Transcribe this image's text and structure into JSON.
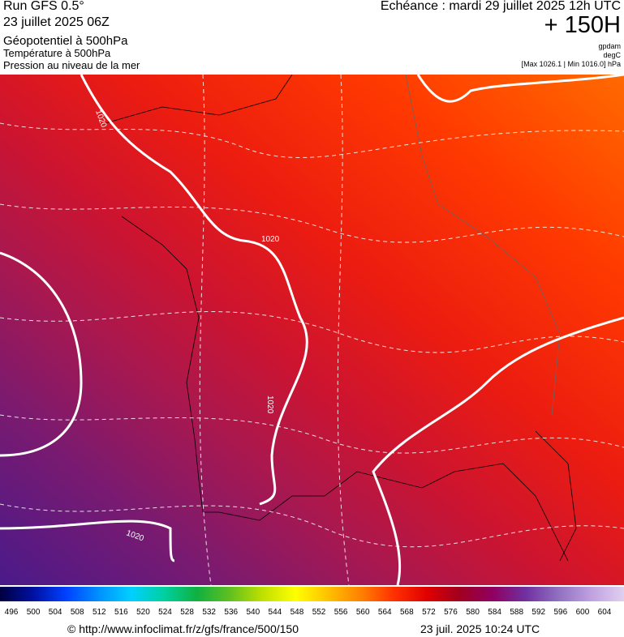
{
  "header": {
    "run": "Run GFS 0.5°",
    "date": "23 juillet 2025 06Z",
    "fields": [
      "Géopotentiel à 500hPa",
      "Température à 500hPa",
      "Pression au niveau de la mer"
    ],
    "echeance": "Echéance : mardi 29 juillet 2025 12h UTC",
    "lead": "+ 150H",
    "units": [
      "gpdam",
      "degC",
      "[Max 1026.1 | Min 1016.0] hPa"
    ]
  },
  "map": {
    "contour_labels": [
      "1020",
      "1020",
      "1020",
      "1020"
    ]
  },
  "colorbar": {
    "ticks": [
      496,
      500,
      504,
      508,
      512,
      516,
      520,
      524,
      528,
      532,
      536,
      540,
      544,
      548,
      552,
      556,
      560,
      564,
      568,
      572,
      576,
      580,
      584,
      588,
      592,
      596,
      600,
      604
    ]
  },
  "footer": {
    "url": "© http://www.infoclimat.fr/z/gfs/france/500/150",
    "timestamp": "23 juil. 2025 10:24 UTC"
  }
}
